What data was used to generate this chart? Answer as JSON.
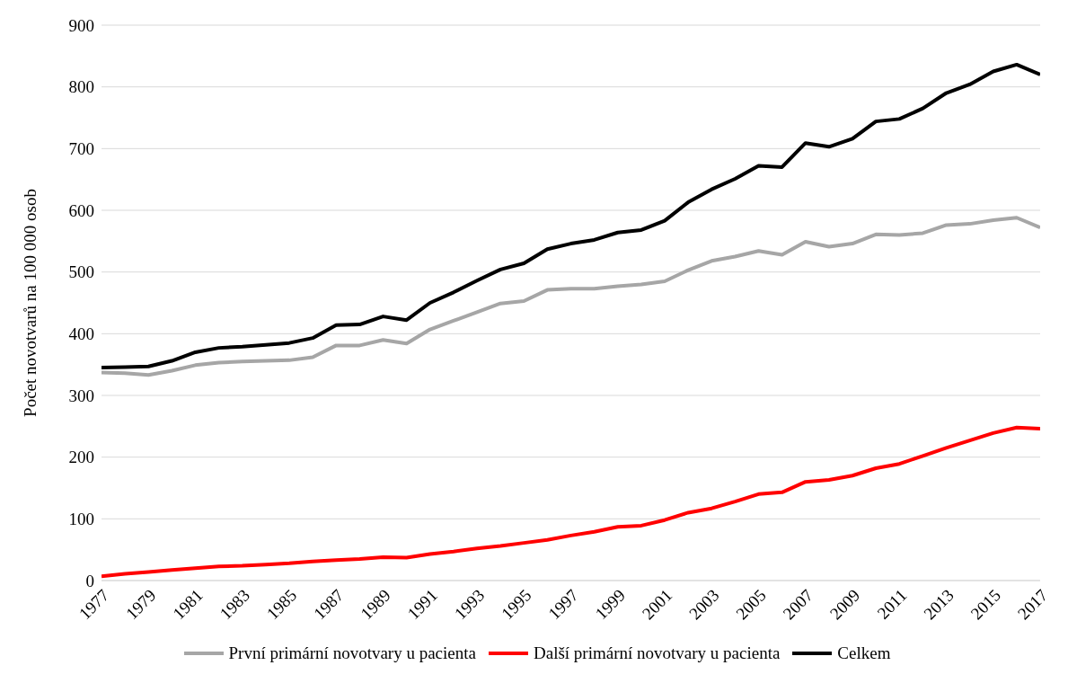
{
  "chart_data": {
    "type": "line",
    "ylabel": "Počet novotvarů na 100 000 osob",
    "x": [
      1977,
      1978,
      1979,
      1980,
      1981,
      1982,
      1983,
      1984,
      1985,
      1986,
      1987,
      1988,
      1989,
      1990,
      1991,
      1992,
      1993,
      1994,
      1995,
      1996,
      1997,
      1998,
      1999,
      2000,
      2001,
      2002,
      2003,
      2004,
      2005,
      2006,
      2007,
      2008,
      2009,
      2010,
      2011,
      2012,
      2013,
      2014,
      2015,
      2016,
      2017
    ],
    "series": [
      {
        "name": "První primární novotvary u pacienta",
        "color": "#a6a6a6",
        "values": [
          337,
          336,
          333,
          340,
          349,
          353,
          355,
          356,
          357,
          362,
          381,
          381,
          390,
          384,
          407,
          421,
          435,
          449,
          453,
          471,
          473,
          473,
          477,
          480,
          485,
          503,
          518,
          525,
          534,
          528,
          549,
          541,
          546,
          561,
          560,
          563,
          576,
          578,
          584,
          588,
          572
        ]
      },
      {
        "name": "Další primární novotvary u pacienta",
        "color": "#ff0000",
        "values": [
          7,
          11,
          14,
          17,
          20,
          23,
          24,
          26,
          28,
          31,
          33,
          35,
          38,
          37,
          43,
          47,
          52,
          56,
          61,
          66,
          73,
          79,
          87,
          89,
          98,
          110,
          117,
          128,
          140,
          143,
          160,
          163,
          170,
          182,
          189,
          202,
          215,
          227,
          239,
          248,
          246
        ]
      },
      {
        "name": "Celkem",
        "color": "#000000",
        "values": [
          345,
          346,
          347,
          356,
          370,
          377,
          379,
          382,
          385,
          393,
          414,
          415,
          428,
          422,
          450,
          467,
          486,
          504,
          514,
          537,
          546,
          552,
          564,
          568,
          583,
          613,
          634,
          651,
          672,
          670,
          709,
          703,
          716,
          744,
          748,
          765,
          790,
          804,
          825,
          836,
          820
        ]
      }
    ],
    "xlim": [
      1977,
      2017
    ],
    "xticks": [
      1977,
      1979,
      1981,
      1983,
      1985,
      1987,
      1989,
      1991,
      1993,
      1995,
      1997,
      1999,
      2001,
      2003,
      2005,
      2007,
      2009,
      2011,
      2013,
      2015,
      2017
    ],
    "ylim": [
      0,
      900
    ],
    "yticks": [
      0,
      100,
      200,
      300,
      400,
      500,
      600,
      700,
      800,
      900
    ],
    "grid": "y",
    "legend": "bottom",
    "marker": "none",
    "line_style": "solid"
  }
}
